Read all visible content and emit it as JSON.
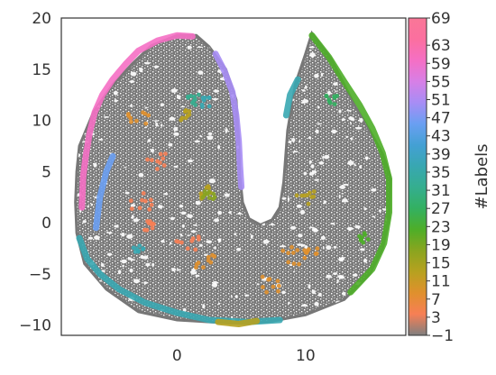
{
  "chart_data": {
    "type": "scatter",
    "title": "",
    "xlabel": "",
    "ylabel": "",
    "xlim": [
      -9,
      17.8
    ],
    "ylim": [
      -11,
      20
    ],
    "xticks": [
      0,
      10
    ],
    "yticks": [
      -10,
      -5,
      0,
      5,
      10,
      15,
      20
    ],
    "grid": false,
    "colorbar": {
      "label": "#Labels",
      "ticks": [
        -1,
        3,
        7,
        11,
        15,
        19,
        23,
        27,
        31,
        35,
        39,
        43,
        47,
        51,
        55,
        59,
        63,
        69
      ],
      "range": [
        -1,
        69
      ],
      "gradient": [
        "#7f7f7f",
        "#f77f55",
        "#e0902d",
        "#b7a11f",
        "#8aa51f",
        "#4eae28",
        "#33b061",
        "#35ae8f",
        "#38a7b1",
        "#44a0d4",
        "#6a9ff2",
        "#a78df5",
        "#d77fe6",
        "#f56fc4",
        "#fb6f9f",
        "#f97797"
      ]
    },
    "series": [
      {
        "name": "",
        "color": "#777777",
        "description_points": [],
        "shape_outline": [
          [
            -7.6,
            7.5
          ],
          [
            -6.5,
            10.8
          ],
          [
            -5,
            13.5
          ],
          [
            -3.5,
            15.5
          ],
          [
            -2,
            17.3
          ],
          [
            0,
            18.3
          ],
          [
            1.5,
            18.3
          ],
          [
            2.5,
            17.2
          ],
          [
            3.8,
            15
          ],
          [
            4.6,
            12
          ],
          [
            4.8,
            8
          ],
          [
            4.9,
            4.5
          ],
          [
            5.1,
            2
          ],
          [
            5.6,
            0.4
          ],
          [
            6.5,
            -0.2
          ],
          [
            7.4,
            0.3
          ],
          [
            8,
            1.5
          ],
          [
            8.3,
            4
          ],
          [
            8.6,
            9
          ],
          [
            9.2,
            13.5
          ],
          [
            10,
            16.5
          ],
          [
            10.5,
            18.5
          ],
          [
            12,
            16
          ],
          [
            13.8,
            11.5
          ],
          [
            15,
            9
          ],
          [
            16,
            6.7
          ],
          [
            16.6,
            4.5
          ],
          [
            16.5,
            0.5
          ],
          [
            16,
            -2.5
          ],
          [
            15,
            -5
          ],
          [
            13,
            -7.5
          ],
          [
            10,
            -9
          ],
          [
            7,
            -9.7
          ],
          [
            4,
            -9.8
          ],
          [
            0,
            -9.5
          ],
          [
            -3,
            -8.7
          ],
          [
            -5.5,
            -6.5
          ],
          [
            -7.2,
            -4
          ],
          [
            -7.8,
            -1
          ],
          [
            -7.9,
            2
          ],
          [
            -7.8,
            5
          ]
        ]
      },
      {
        "name": "",
        "label_value": 63,
        "color": "#f56fc4",
        "path": [
          [
            -7.4,
            1.5
          ],
          [
            -7.3,
            4.5
          ],
          [
            -7.1,
            6.5
          ],
          [
            -6.8,
            8.8
          ],
          [
            -6.4,
            10.8
          ],
          [
            -5.8,
            12.5
          ],
          [
            -5.0,
            14.0
          ],
          [
            -4.0,
            15.5
          ],
          [
            -3.0,
            16.8
          ],
          [
            -1.5,
            17.8
          ],
          [
            0.0,
            18.3
          ],
          [
            1.2,
            18.2
          ]
        ]
      },
      {
        "name": "",
        "label_value": 51,
        "color": "#a78df5",
        "path": [
          [
            3.0,
            16.5
          ],
          [
            3.7,
            14.8
          ],
          [
            4.3,
            12.8
          ],
          [
            4.6,
            10.5
          ],
          [
            4.8,
            8.0
          ],
          [
            4.9,
            5.5
          ],
          [
            5.0,
            3.5
          ]
        ]
      },
      {
        "name": "",
        "label_value": 47,
        "color": "#6a9ff2",
        "path": [
          [
            -6.3,
            -0.5
          ],
          [
            -6.0,
            2.5
          ],
          [
            -5.5,
            5.0
          ],
          [
            -5.0,
            6.5
          ]
        ]
      },
      {
        "name": "",
        "label_value": 43,
        "color": "#38a7b1",
        "path": [
          [
            -7.6,
            -1.5
          ],
          [
            -7.0,
            -3.5
          ],
          [
            -6.0,
            -5.0
          ],
          [
            -4.5,
            -6.5
          ],
          [
            -2.5,
            -7.8
          ],
          [
            0.0,
            -8.8
          ],
          [
            2.5,
            -9.5
          ],
          [
            5.5,
            -9.7
          ],
          [
            8.0,
            -9.5
          ]
        ]
      },
      {
        "name": "",
        "label_value": 23,
        "color": "#4eae28",
        "path": [
          [
            10.5,
            18.3
          ],
          [
            11.8,
            16.2
          ],
          [
            13.0,
            13.8
          ],
          [
            14.2,
            11.5
          ],
          [
            15.2,
            9.2
          ],
          [
            16.0,
            6.8
          ],
          [
            16.5,
            4.3
          ],
          [
            16.5,
            1.0
          ],
          [
            16.1,
            -2.0
          ],
          [
            15.2,
            -4.5
          ],
          [
            13.5,
            -6.8
          ]
        ]
      },
      {
        "name": "",
        "label_value": 15,
        "color": "#b7a11f",
        "path": [
          [
            3.2,
            -9.7
          ],
          [
            4.8,
            -9.9
          ],
          [
            6.2,
            -9.6
          ]
        ]
      },
      {
        "name": "",
        "label_value": 43,
        "color": "#38a7b1",
        "path": [
          [
            8.5,
            10.5
          ],
          [
            8.8,
            12.5
          ],
          [
            9.4,
            14.0
          ]
        ]
      }
    ],
    "clusters": [
      {
        "label_value": 3,
        "color": "#f77f55",
        "x": -2.8,
        "y": 2.2,
        "r": 0.9
      },
      {
        "label_value": 3,
        "color": "#f77f55",
        "x": 0.8,
        "y": -2.0,
        "r": 0.9
      },
      {
        "label_value": 7,
        "color": "#e0902d",
        "x": -3.0,
        "y": 10.0,
        "r": 0.8
      },
      {
        "label_value": 7,
        "color": "#e0902d",
        "x": 2.2,
        "y": -3.8,
        "r": 0.8
      },
      {
        "label_value": 7,
        "color": "#e0902d",
        "x": 9.0,
        "y": -3.2,
        "r": 1.0
      },
      {
        "label_value": 7,
        "color": "#e0902d",
        "x": 7.3,
        "y": -6.0,
        "r": 0.8
      },
      {
        "label_value": 3,
        "color": "#f77f55",
        "x": -1.5,
        "y": 6.0,
        "r": 0.8
      },
      {
        "label_value": 11,
        "color": "#b7a11f",
        "x": 1.0,
        "y": 10.5,
        "r": 0.7
      },
      {
        "label_value": 11,
        "color": "#b7a11f",
        "x": 2.0,
        "y": 3.0,
        "r": 0.7
      },
      {
        "label_value": 11,
        "color": "#b7a11f",
        "x": 10.0,
        "y": 2.5,
        "r": 0.7
      },
      {
        "label_value": 31,
        "color": "#35ae8f",
        "x": 1.1,
        "y": 12.0,
        "r": 0.6
      },
      {
        "label_value": 35,
        "color": "#38a7b1",
        "x": 2.3,
        "y": 11.8,
        "r": 0.5
      },
      {
        "label_value": 19,
        "color": "#8aa51f",
        "x": 2.5,
        "y": 2.8,
        "r": 0.5
      },
      {
        "label_value": 27,
        "color": "#33b061",
        "x": 12.0,
        "y": 12.0,
        "r": 0.5
      },
      {
        "label_value": 23,
        "color": "#4eae28",
        "x": 14.5,
        "y": -1.5,
        "r": 0.5
      },
      {
        "label_value": 3,
        "color": "#f77f55",
        "x": -2.3,
        "y": -0.3,
        "r": 0.5
      },
      {
        "label_value": 7,
        "color": "#e0902d",
        "x": 10.5,
        "y": -2.5,
        "r": 0.6
      },
      {
        "label_value": 39,
        "color": "#38a7b1",
        "x": -3.0,
        "y": -2.5,
        "r": 0.4
      }
    ]
  }
}
